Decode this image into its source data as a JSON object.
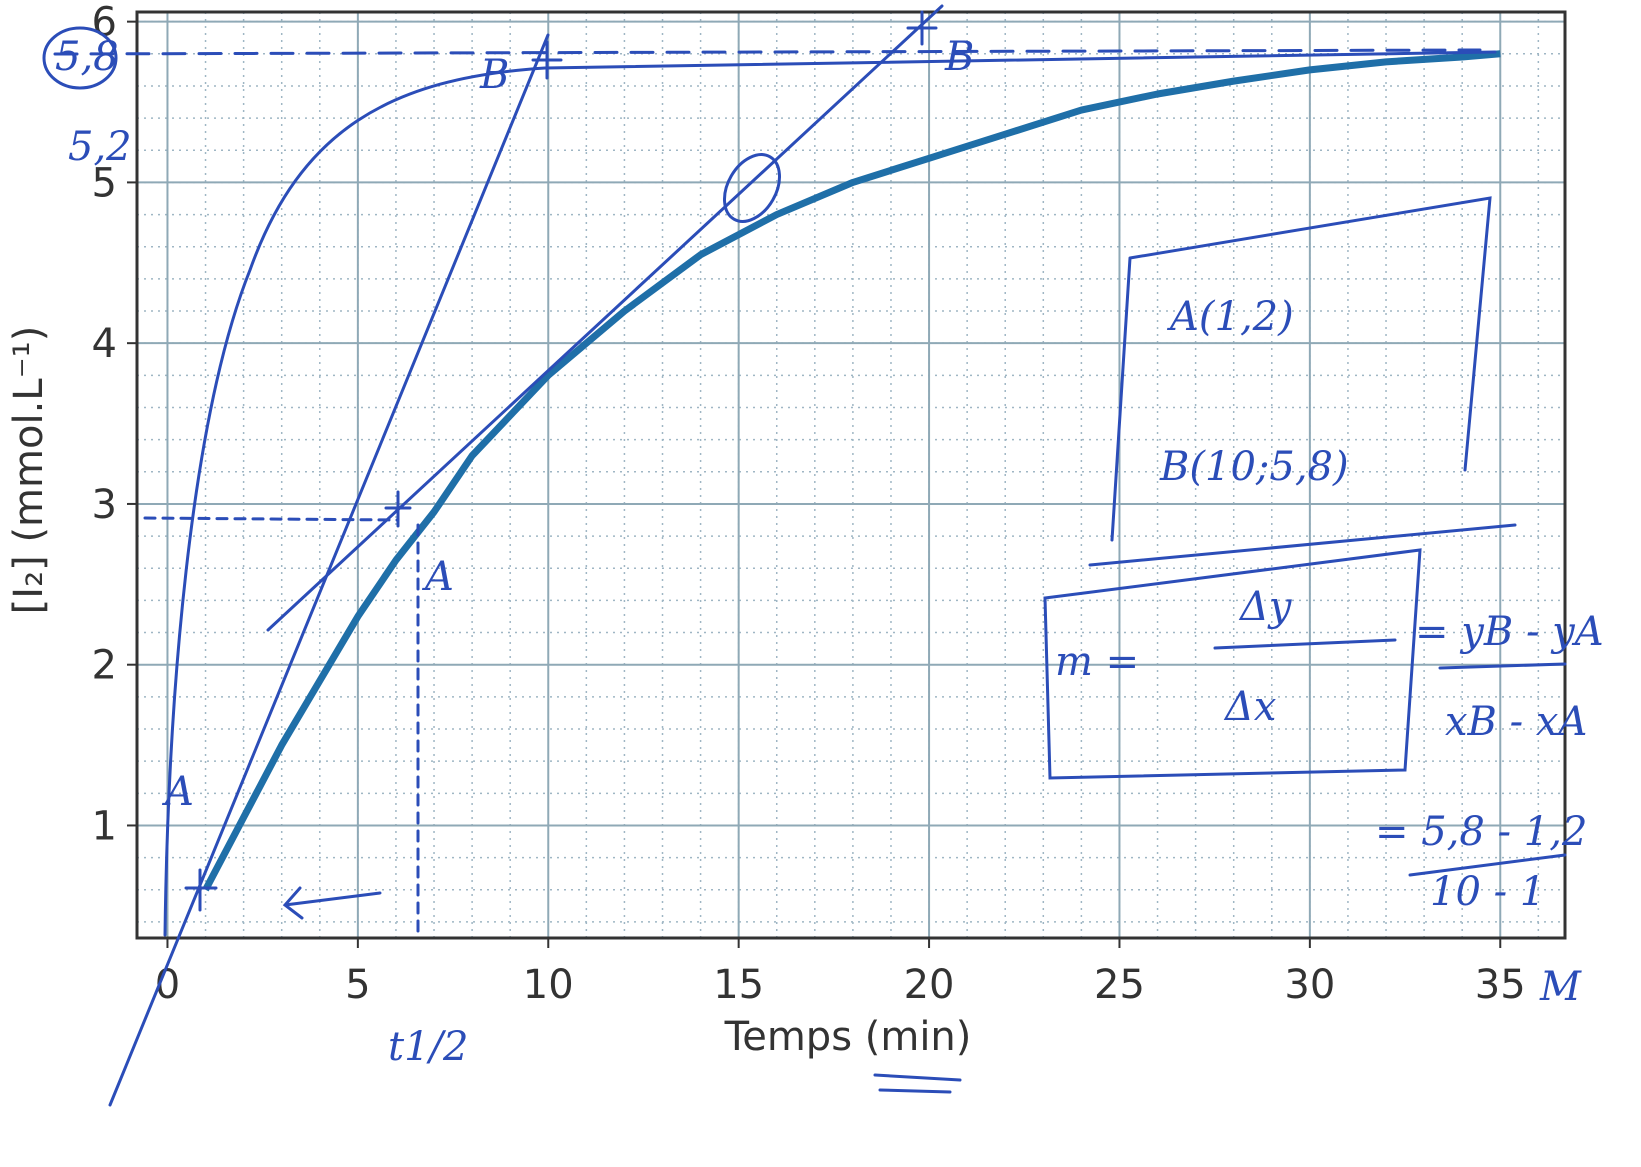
{
  "chart_data": {
    "type": "line",
    "x_label": "Temps (min)",
    "y_label": "[I₂] (mmol.L⁻¹)",
    "x": [
      1,
      2,
      3,
      4,
      5,
      6,
      7,
      8,
      9,
      10,
      12,
      14,
      16,
      18,
      20,
      22,
      24,
      26,
      28,
      30,
      32,
      34,
      35
    ],
    "series": [
      {
        "color": "#1f6fa8",
        "values": [
          0.6,
          1.05,
          1.5,
          1.9,
          2.3,
          2.65,
          2.95,
          3.3,
          3.55,
          3.8,
          4.2,
          4.55,
          4.8,
          5.0,
          5.15,
          5.3,
          5.45,
          5.55,
          5.63,
          5.7,
          5.75,
          5.78,
          5.8
        ]
      }
    ],
    "xlim": [
      -0.8,
      36.7
    ],
    "ylim": [
      0.3,
      6.06
    ],
    "xticks": [
      0,
      5,
      10,
      15,
      20,
      25,
      30,
      35
    ],
    "yticks": [
      1,
      2,
      3,
      4,
      5,
      6
    ],
    "grid": true,
    "minor_grid": {
      "x": 1,
      "y": 0.2
    },
    "annotations": [
      "5,8",
      "5,2",
      "B",
      "B",
      "A",
      "A",
      "t1/2",
      "A(1,2)",
      "B(10;5,8)",
      "m =",
      "Δy",
      "Δx",
      "= yB - yA",
      "xB - xA",
      "= 5,8 - 1,2",
      "10 - 1",
      "M"
    ]
  }
}
